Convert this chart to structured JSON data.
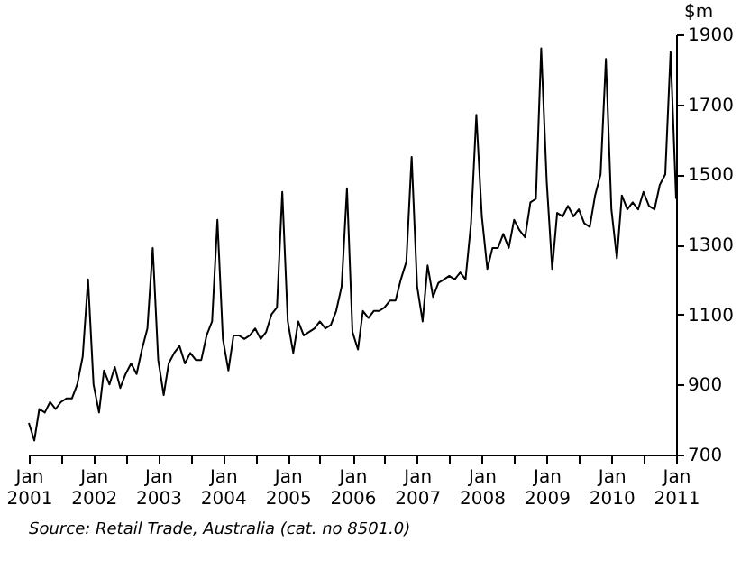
{
  "chart_data": {
    "type": "line",
    "ylabel": "$m",
    "annotations": [
      "Source: Retail Trade, Australia (cat. no 8501.0)"
    ],
    "x": [
      "2001-01",
      "2001-02",
      "2001-03",
      "2001-04",
      "2001-05",
      "2001-06",
      "2001-07",
      "2001-08",
      "2001-09",
      "2001-10",
      "2001-11",
      "2001-12",
      "2002-01",
      "2002-02",
      "2002-03",
      "2002-04",
      "2002-05",
      "2002-06",
      "2002-07",
      "2002-08",
      "2002-09",
      "2002-10",
      "2002-11",
      "2002-12",
      "2003-01",
      "2003-02",
      "2003-03",
      "2003-04",
      "2003-05",
      "2003-06",
      "2003-07",
      "2003-08",
      "2003-09",
      "2003-10",
      "2003-11",
      "2003-12",
      "2004-01",
      "2004-02",
      "2004-03",
      "2004-04",
      "2004-05",
      "2004-06",
      "2004-07",
      "2004-08",
      "2004-09",
      "2004-10",
      "2004-11",
      "2004-12",
      "2005-01",
      "2005-02",
      "2005-03",
      "2005-04",
      "2005-05",
      "2005-06",
      "2005-07",
      "2005-08",
      "2005-09",
      "2005-10",
      "2005-11",
      "2005-12",
      "2006-01",
      "2006-02",
      "2006-03",
      "2006-04",
      "2006-05",
      "2006-06",
      "2006-07",
      "2006-08",
      "2006-09",
      "2006-10",
      "2006-11",
      "2006-12",
      "2007-01",
      "2007-02",
      "2007-03",
      "2007-04",
      "2007-05",
      "2007-06",
      "2007-07",
      "2007-08",
      "2007-09",
      "2007-10",
      "2007-11",
      "2007-12",
      "2008-01",
      "2008-02",
      "2008-03",
      "2008-04",
      "2008-05",
      "2008-06",
      "2008-07",
      "2008-08",
      "2008-09",
      "2008-10",
      "2008-11",
      "2008-12",
      "2009-01",
      "2009-02",
      "2009-03",
      "2009-04",
      "2009-05",
      "2009-06",
      "2009-07",
      "2009-08",
      "2009-09",
      "2009-10",
      "2009-11",
      "2009-12",
      "2010-01",
      "2010-02",
      "2010-03",
      "2010-04",
      "2010-05",
      "2010-06",
      "2010-07",
      "2010-08",
      "2010-09",
      "2010-10",
      "2010-11",
      "2010-12",
      "2011-01"
    ],
    "series": [
      {
        "color": "#000000",
        "values": [
          790,
          740,
          830,
          820,
          850,
          830,
          850,
          860,
          860,
          900,
          980,
          1200,
          900,
          820,
          940,
          900,
          950,
          890,
          930,
          960,
          930,
          1000,
          1060,
          1290,
          970,
          870,
          960,
          990,
          1010,
          960,
          990,
          970,
          970,
          1040,
          1080,
          1370,
          1030,
          940,
          1040,
          1040,
          1030,
          1040,
          1060,
          1030,
          1050,
          1100,
          1120,
          1450,
          1080,
          990,
          1080,
          1040,
          1050,
          1060,
          1080,
          1060,
          1070,
          1110,
          1180,
          1460,
          1050,
          1000,
          1110,
          1090,
          1110,
          1110,
          1120,
          1140,
          1140,
          1200,
          1250,
          1550,
          1180,
          1080,
          1240,
          1150,
          1190,
          1200,
          1210,
          1200,
          1220,
          1200,
          1360,
          1670,
          1380,
          1230,
          1290,
          1290,
          1330,
          1290,
          1370,
          1340,
          1320,
          1420,
          1430,
          1860,
          1480,
          1230,
          1390,
          1380,
          1410,
          1380,
          1400,
          1360,
          1350,
          1440,
          1500,
          1830,
          1400,
          1260,
          1440,
          1400,
          1420,
          1400,
          1450,
          1410,
          1400,
          1470,
          1500,
          1850,
          1430
        ]
      }
    ],
    "xlim": [
      "2001-01",
      "2011-01"
    ],
    "xticks": [
      {
        "value": "2001-01",
        "label": "Jan\n2001"
      },
      {
        "value": "2001-07",
        "label": null
      },
      {
        "value": "2002-01",
        "label": "Jan\n2002"
      },
      {
        "value": "2002-07",
        "label": null
      },
      {
        "value": "2003-01",
        "label": "Jan\n2003"
      },
      {
        "value": "2003-07",
        "label": null
      },
      {
        "value": "2004-01",
        "label": "Jan\n2004"
      },
      {
        "value": "2004-07",
        "label": null
      },
      {
        "value": "2005-01",
        "label": "Jan\n2005"
      },
      {
        "value": "2005-07",
        "label": null
      },
      {
        "value": "2006-01",
        "label": "Jan\n2006"
      },
      {
        "value": "2006-07",
        "label": null
      },
      {
        "value": "2007-01",
        "label": "Jan\n2007"
      },
      {
        "value": "2007-07",
        "label": null
      },
      {
        "value": "2008-01",
        "label": "Jan\n2008"
      },
      {
        "value": "2008-07",
        "label": null
      },
      {
        "value": "2009-01",
        "label": "Jan\n2009"
      },
      {
        "value": "2009-07",
        "label": null
      },
      {
        "value": "2010-01",
        "label": "Jan\n2010"
      },
      {
        "value": "2010-07",
        "label": null
      },
      {
        "value": "2011-01",
        "label": "Jan\n2011"
      }
    ],
    "ylim": [
      700,
      1900
    ],
    "yticks": [
      700,
      900,
      1100,
      1300,
      1500,
      1700,
      1900
    ],
    "grid": false,
    "marker": "none",
    "line_style": "solid"
  }
}
